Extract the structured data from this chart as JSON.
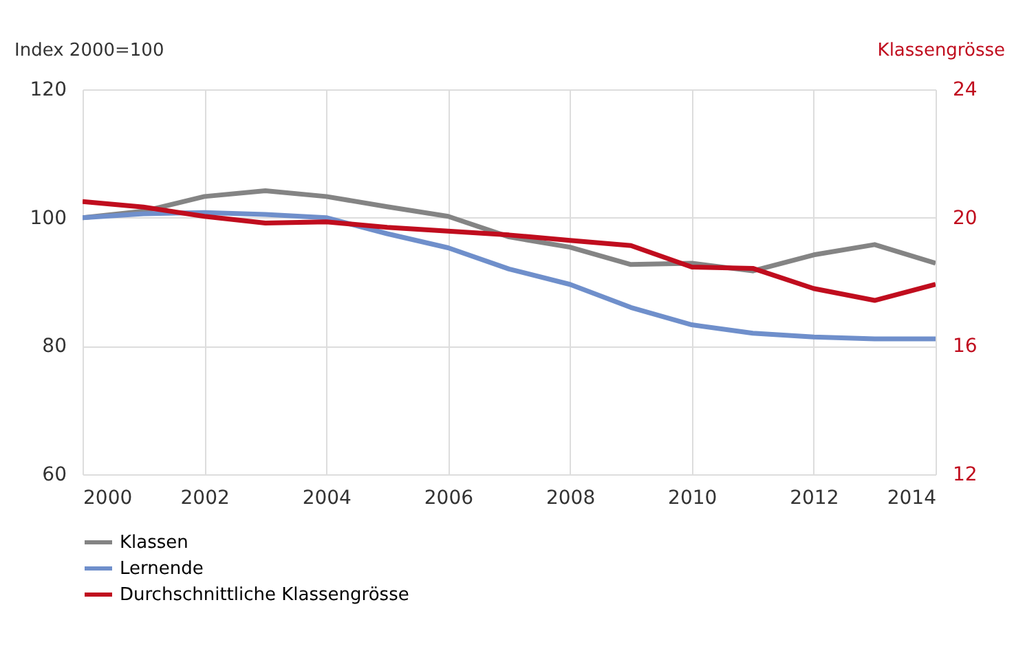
{
  "chart_data": {
    "type": "line",
    "ylabel": "Index 2000=100",
    "y2label": "Klassengrösse",
    "x": [
      2000,
      2001,
      2002,
      2003,
      2004,
      2005,
      2006,
      2007,
      2008,
      2009,
      2010,
      2011,
      2012,
      2013,
      2014
    ],
    "xlim": [
      2000,
      2014
    ],
    "xticks": [
      2000,
      2002,
      2004,
      2006,
      2008,
      2010,
      2012,
      2014
    ],
    "ylim": [
      60,
      120
    ],
    "yticks": [
      60,
      80,
      100,
      120
    ],
    "y2lim": [
      12,
      24
    ],
    "y2ticks": [
      12,
      16,
      20,
      24
    ],
    "grid": true,
    "legend": "bottom",
    "marker": "none",
    "line_style": "solid",
    "series": [
      {
        "name": "Klassen",
        "color": "#848484",
        "values": [
          100,
          101,
          103.3,
          104.2,
          103.3,
          101.7,
          100.2,
          97,
          95.4,
          92.7,
          92.9,
          91.7,
          94.2,
          95.8,
          92.9
        ]
      },
      {
        "name": "Lernende",
        "color": "#6f8fcb",
        "values": [
          100,
          100.6,
          100.8,
          100.5,
          100,
          97.5,
          95.3,
          92,
          89.6,
          86,
          83.3,
          82,
          81.4,
          81.1,
          81.1
        ]
      },
      {
        "name": "Durchschnittliche Klassengrösse",
        "color": "#c00d1e",
        "axis": "y2",
        "values": [
          20.5,
          20.33,
          20.04,
          19.83,
          19.87,
          19.7,
          19.58,
          19.46,
          19.29,
          19.13,
          18.46,
          18.42,
          17.79,
          17.42,
          17.92
        ]
      }
    ]
  }
}
